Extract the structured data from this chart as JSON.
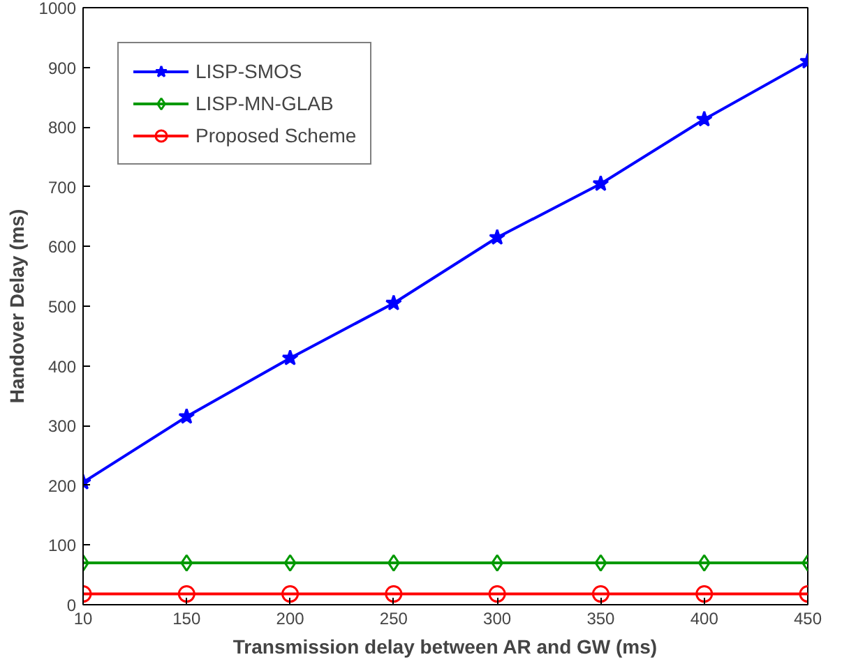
{
  "chart_data": {
    "type": "line",
    "xlabel": "Transmission delay between AR and GW (ms)",
    "ylabel": "Handover Delay (ms)",
    "categories": [
      "10",
      "150",
      "200",
      "250",
      "300",
      "350",
      "400",
      "450"
    ],
    "series": [
      {
        "name": "LISP-SMOS",
        "color": "#0000ff",
        "marker": "star",
        "values": [
          205,
          315,
          413,
          505,
          615,
          705,
          813,
          910
        ]
      },
      {
        "name": "LISP-MN-GLAB",
        "color": "#009900",
        "marker": "diamond",
        "values": [
          70,
          70,
          70,
          70,
          70,
          70,
          70,
          70
        ]
      },
      {
        "name": "Proposed Scheme",
        "color": "#ff0000",
        "marker": "circle",
        "values": [
          18,
          18,
          18,
          18,
          18,
          18,
          18,
          18
        ]
      }
    ],
    "ylim": [
      0,
      1000
    ],
    "yticks": [
      0,
      100,
      200,
      300,
      400,
      500,
      600,
      700,
      800,
      900,
      1000
    ],
    "grid": false,
    "legend": "top left",
    "line_style": "solid"
  }
}
